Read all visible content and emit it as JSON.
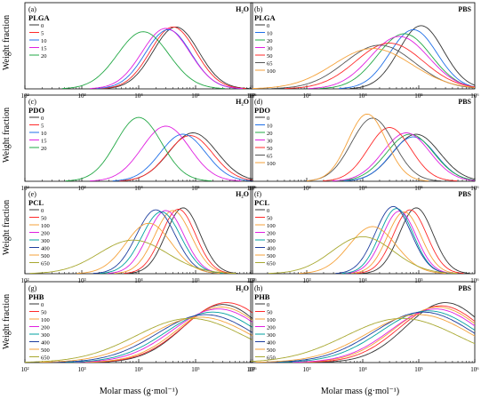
{
  "figure": {
    "xlabel": "Molar mass (g·mol⁻¹)",
    "ylabel": "Weight fraction",
    "medium_labels": [
      "H₂O",
      "PBS"
    ],
    "xtick_labels": [
      "10²",
      "10³",
      "10⁴",
      "10⁵",
      "10⁶"
    ]
  },
  "colors": {
    "0": "#333333",
    "5": "#ff2a2a",
    "10": "#1f6fe8",
    "15": "#e020e0",
    "20": "#22a845",
    "30": "#e020e0",
    "50": "#ff2a2a",
    "65": "#555555",
    "100": "#f5a23a",
    "200": "#e020e0",
    "300": "#00a0a0",
    "400": "#1f3f9f",
    "500": "#f5a23a",
    "650": "#a8a830"
  },
  "chart_data": [
    {
      "type": "line",
      "panel": "(a)",
      "polymer": "PLGA",
      "medium": "H₂O",
      "x_scale": "log",
      "xlim": [
        100,
        1000000
      ],
      "yticks": "none",
      "legend": [
        "0",
        "5",
        "10",
        "15",
        "20"
      ],
      "series": [
        {
          "name": "0",
          "peak_mw": 45000,
          "width": 0.4,
          "height": 0.92
        },
        {
          "name": "5",
          "peak_mw": 40000,
          "width": 0.4,
          "height": 0.92
        },
        {
          "name": "10",
          "peak_mw": 33000,
          "width": 0.4,
          "height": 0.88
        },
        {
          "name": "15",
          "peak_mw": 30000,
          "width": 0.42,
          "height": 0.9
        },
        {
          "name": "20",
          "peak_mw": 12000,
          "width": 0.45,
          "height": 0.85
        }
      ]
    },
    {
      "type": "line",
      "panel": "(b)",
      "polymer": "PLGA",
      "medium": "PBS",
      "x_scale": "log",
      "xlim": [
        100,
        1000000
      ],
      "yticks": "none",
      "legend": [
        "0",
        "10",
        "20",
        "30",
        "50",
        "65",
        "100"
      ],
      "series": [
        {
          "name": "0",
          "peak_mw": 110000,
          "width": 0.4,
          "height": 0.94
        },
        {
          "name": "10",
          "peak_mw": 80000,
          "width": 0.42,
          "height": 0.88
        },
        {
          "name": "20",
          "peak_mw": 55000,
          "width": 0.48,
          "height": 0.82
        },
        {
          "name": "30",
          "peak_mw": 45000,
          "width": 0.52,
          "height": 0.78
        },
        {
          "name": "50",
          "peak_mw": 30000,
          "width": 0.6,
          "height": 0.68
        },
        {
          "name": "65",
          "peak_mw": 20000,
          "width": 0.62,
          "height": 0.65
        },
        {
          "name": "100",
          "peak_mw": 15000,
          "width": 0.7,
          "height": 0.6
        }
      ]
    },
    {
      "type": "line",
      "panel": "(c)",
      "polymer": "PDO",
      "medium": "H₂O",
      "x_scale": "log",
      "xlim": [
        100,
        1000000
      ],
      "yticks": "none",
      "legend": [
        "0",
        "5",
        "10",
        "15",
        "20"
      ],
      "series": [
        {
          "name": "0",
          "peak_mw": 90000,
          "width": 0.42,
          "height": 0.72
        },
        {
          "name": "5",
          "peak_mw": 80000,
          "width": 0.4,
          "height": 0.68
        },
        {
          "name": "10",
          "peak_mw": 60000,
          "width": 0.4,
          "height": 0.7
        },
        {
          "name": "15",
          "peak_mw": 30000,
          "width": 0.42,
          "height": 0.82
        },
        {
          "name": "20",
          "peak_mw": 10000,
          "width": 0.4,
          "height": 0.95
        }
      ]
    },
    {
      "type": "line",
      "panel": "(d)",
      "polymer": "PDO",
      "medium": "PBS",
      "x_scale": "log",
      "xlim": [
        100,
        1000000
      ],
      "yticks": "none",
      "legend": [
        "0",
        "10",
        "20",
        "30",
        "50",
        "65",
        "100"
      ],
      "series": [
        {
          "name": "0",
          "peak_mw": 90000,
          "width": 0.42,
          "height": 0.7
        },
        {
          "name": "10",
          "peak_mw": 80000,
          "width": 0.4,
          "height": 0.66
        },
        {
          "name": "20",
          "peak_mw": 70000,
          "width": 0.42,
          "height": 0.7
        },
        {
          "name": "30",
          "peak_mw": 60000,
          "width": 0.42,
          "height": 0.72
        },
        {
          "name": "50",
          "peak_mw": 30000,
          "width": 0.38,
          "height": 0.8
        },
        {
          "name": "65",
          "peak_mw": 15000,
          "width": 0.38,
          "height": 0.94
        },
        {
          "name": "100",
          "peak_mw": 12000,
          "width": 0.34,
          "height": 1.0
        }
      ]
    },
    {
      "type": "line",
      "panel": "(e)",
      "polymer": "PCL",
      "medium": "H₂O",
      "x_scale": "log",
      "xlim": [
        100,
        1000000
      ],
      "yticks": "none",
      "legend": [
        "0",
        "50",
        "100",
        "200",
        "300",
        "400",
        "500",
        "650"
      ],
      "series": [
        {
          "name": "0",
          "peak_mw": 60000,
          "width": 0.3,
          "height": 0.98
        },
        {
          "name": "50",
          "peak_mw": 50000,
          "width": 0.3,
          "height": 0.96
        },
        {
          "name": "100",
          "peak_mw": 40000,
          "width": 0.32,
          "height": 0.94
        },
        {
          "name": "200",
          "peak_mw": 30000,
          "width": 0.32,
          "height": 0.94
        },
        {
          "name": "300",
          "peak_mw": 25000,
          "width": 0.34,
          "height": 0.92
        },
        {
          "name": "400",
          "peak_mw": 20000,
          "width": 0.34,
          "height": 0.95
        },
        {
          "name": "500",
          "peak_mw": 15000,
          "width": 0.4,
          "height": 0.75
        },
        {
          "name": "650",
          "peak_mw": 8000,
          "width": 0.6,
          "height": 0.5
        }
      ]
    },
    {
      "type": "line",
      "panel": "(f)",
      "polymer": "PCL",
      "medium": "PBS",
      "x_scale": "log",
      "xlim": [
        100,
        1000000
      ],
      "yticks": "none",
      "legend": [
        "0",
        "50",
        "100",
        "200",
        "300",
        "400",
        "500",
        "650"
      ],
      "series": [
        {
          "name": "0",
          "peak_mw": 90000,
          "width": 0.3,
          "height": 0.98
        },
        {
          "name": "50",
          "peak_mw": 70000,
          "width": 0.3,
          "height": 0.95
        },
        {
          "name": "100",
          "peak_mw": 55000,
          "width": 0.3,
          "height": 0.92
        },
        {
          "name": "200",
          "peak_mw": 45000,
          "width": 0.3,
          "height": 0.93
        },
        {
          "name": "300",
          "peak_mw": 40000,
          "width": 0.3,
          "height": 0.97
        },
        {
          "name": "400",
          "peak_mw": 35000,
          "width": 0.32,
          "height": 1.0
        },
        {
          "name": "500",
          "peak_mw": 15000,
          "width": 0.42,
          "height": 0.7
        },
        {
          "name": "650",
          "peak_mw": 10000,
          "width": 0.55,
          "height": 0.55
        }
      ]
    },
    {
      "type": "line",
      "panel": "(g)",
      "polymer": "PHB",
      "medium": "H₂O",
      "x_scale": "log",
      "xlim": [
        100,
        1000000
      ],
      "yticks": "none",
      "legend": [
        "0",
        "50",
        "100",
        "200",
        "300",
        "400",
        "500",
        "650"
      ],
      "series": [
        {
          "name": "0",
          "peak_mw": 300000,
          "width": 0.7,
          "height": 0.92
        },
        {
          "name": "50",
          "peak_mw": 350000,
          "width": 0.75,
          "height": 0.95
        },
        {
          "name": "100",
          "peak_mw": 280000,
          "width": 0.75,
          "height": 0.88
        },
        {
          "name": "200",
          "peak_mw": 250000,
          "width": 0.8,
          "height": 0.85
        },
        {
          "name": "300",
          "peak_mw": 200000,
          "width": 0.82,
          "height": 0.8
        },
        {
          "name": "400",
          "peak_mw": 150000,
          "width": 0.85,
          "height": 0.76
        },
        {
          "name": "500",
          "peak_mw": 120000,
          "width": 0.9,
          "height": 0.72
        },
        {
          "name": "650",
          "peak_mw": 80000,
          "width": 0.95,
          "height": 0.7
        }
      ]
    },
    {
      "type": "line",
      "panel": "(h)",
      "polymer": "PHB",
      "medium": "PBS",
      "x_scale": "log",
      "xlim": [
        100,
        1000000
      ],
      "yticks": "none",
      "legend": [
        "0",
        "50",
        "100",
        "200",
        "300",
        "400",
        "500",
        "650"
      ],
      "series": [
        {
          "name": "0",
          "peak_mw": 300000,
          "width": 0.7,
          "height": 0.95
        },
        {
          "name": "50",
          "peak_mw": 250000,
          "width": 0.75,
          "height": 0.9
        },
        {
          "name": "100",
          "peak_mw": 220000,
          "width": 0.78,
          "height": 0.88
        },
        {
          "name": "200",
          "peak_mw": 200000,
          "width": 0.8,
          "height": 0.85
        },
        {
          "name": "300",
          "peak_mw": 150000,
          "width": 0.85,
          "height": 0.82
        },
        {
          "name": "400",
          "peak_mw": 120000,
          "width": 0.88,
          "height": 0.8
        },
        {
          "name": "500",
          "peak_mw": 100000,
          "width": 0.92,
          "height": 0.76
        },
        {
          "name": "650",
          "peak_mw": 50000,
          "width": 1.0,
          "height": 0.7
        }
      ]
    }
  ]
}
